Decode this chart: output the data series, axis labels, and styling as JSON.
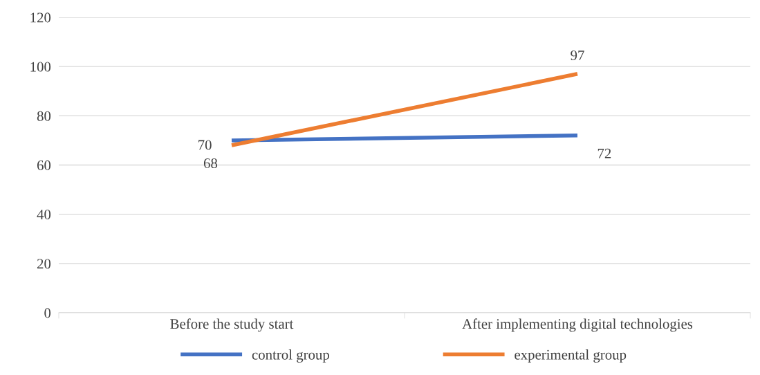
{
  "chart_data": {
    "type": "line",
    "categories": [
      "Before the study start",
      "After implementing digital technologies"
    ],
    "series": [
      {
        "name": "control group",
        "color": "#4472c4",
        "values": [
          70,
          72
        ]
      },
      {
        "name": "experimental group",
        "color": "#ed7d31",
        "values": [
          68,
          97
        ]
      }
    ],
    "ylim": [
      0,
      120
    ],
    "yticks": [
      0,
      20,
      40,
      60,
      80,
      100,
      120
    ],
    "grid": "y",
    "legend": "bottom",
    "data_labels": true,
    "marker": "none",
    "line_style": "solid"
  }
}
